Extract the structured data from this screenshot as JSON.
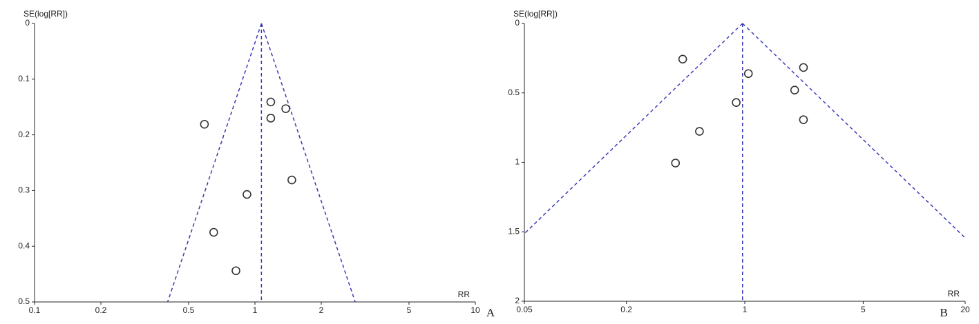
{
  "chart_data": [
    {
      "type": "scatter",
      "panel_label": "A",
      "y_label": "SE(log[RR])",
      "x_label": "RR",
      "x": [
        0.59,
        1.18,
        1.38,
        1.18,
        1.47,
        0.92,
        0.65,
        0.82
      ],
      "y": [
        0.181,
        0.141,
        0.153,
        0.17,
        0.281,
        0.307,
        0.375,
        0.444
      ],
      "summary_rr": 1.07,
      "log_x": true,
      "y_inverted": true,
      "color": "#333333",
      "funnel_color": "#3a3ab8",
      "xlim": [
        0.1,
        10
      ],
      "ylim": [
        0,
        0.5
      ],
      "xticks": [
        0.1,
        0.2,
        0.5,
        1,
        2,
        5,
        10
      ],
      "yticks": [
        0,
        0.1,
        0.2,
        0.3,
        0.4,
        0.5
      ]
    },
    {
      "type": "scatter",
      "panel_label": "B",
      "y_label": "SE(log[RR])",
      "x_label": "RR",
      "x": [
        0.43,
        1.05,
        2.22,
        1.97,
        0.89,
        2.22,
        0.54,
        0.39
      ],
      "y": [
        0.257,
        0.361,
        0.317,
        0.48,
        0.569,
        0.693,
        0.777,
        1.005
      ],
      "summary_rr": 0.97,
      "log_x": true,
      "y_inverted": true,
      "color": "#333333",
      "funnel_color": "#3a3ab8",
      "xlim": [
        0.05,
        20
      ],
      "ylim": [
        0,
        2
      ],
      "xticks": [
        0.05,
        0.2,
        1,
        5,
        20
      ],
      "yticks": [
        0,
        0.5,
        1,
        1.5,
        2
      ]
    }
  ]
}
